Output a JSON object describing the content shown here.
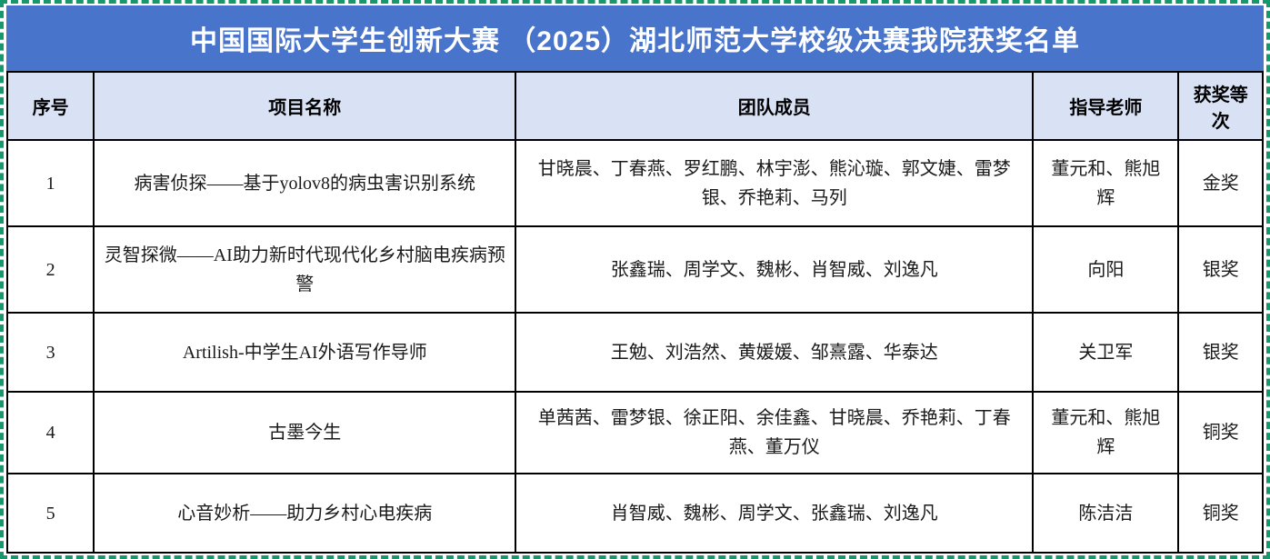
{
  "title": "中国国际大学生创新大赛 （2025）湖北师范大学校级决赛我院获奖名单",
  "table": {
    "columns": [
      "序号",
      "项目名称",
      "团队成员",
      "指导老师",
      "获奖等次"
    ],
    "rows": [
      {
        "no": "1",
        "project": "病害侦探——基于yolov8的病虫害识别系统",
        "members": "甘晓晨、丁春燕、罗红鹏、林宇澎、熊沁璇、郭文婕、雷梦银、乔艳莉、马列",
        "advisor": "董元和、熊旭辉",
        "award": "金奖"
      },
      {
        "no": "2",
        "project": "灵智探微——AI助力新时代现代化乡村脑电疾病预警",
        "members": "张鑫瑞、周学文、魏彬、肖智威、刘逸凡",
        "advisor": "向阳",
        "award": "银奖"
      },
      {
        "no": "3",
        "project": "Artilish-中学生AI外语写作导师",
        "members": "王勉、刘浩然、黄媛媛、邹熹露、华泰达",
        "advisor": "关卫军",
        "award": "银奖"
      },
      {
        "no": "4",
        "project": "古墨今生",
        "members": "单茜茜、雷梦银、徐正阳、余佳鑫、甘晓晨、乔艳莉、丁春燕、董万仪",
        "advisor": "董元和、熊旭辉",
        "award": "铜奖"
      },
      {
        "no": "5",
        "project": "心音妙析——助力乡村心电疾病",
        "members": "肖智威、魏彬、周学文、张鑫瑞、刘逸凡",
        "advisor": "陈洁洁",
        "award": "铜奖"
      }
    ]
  },
  "colors": {
    "title_bg": "#4874CB",
    "title_text": "#FFFFFF",
    "header_bg": "#D9E1F5",
    "cell_border": "#000000",
    "selection_dash": "#16986C"
  }
}
